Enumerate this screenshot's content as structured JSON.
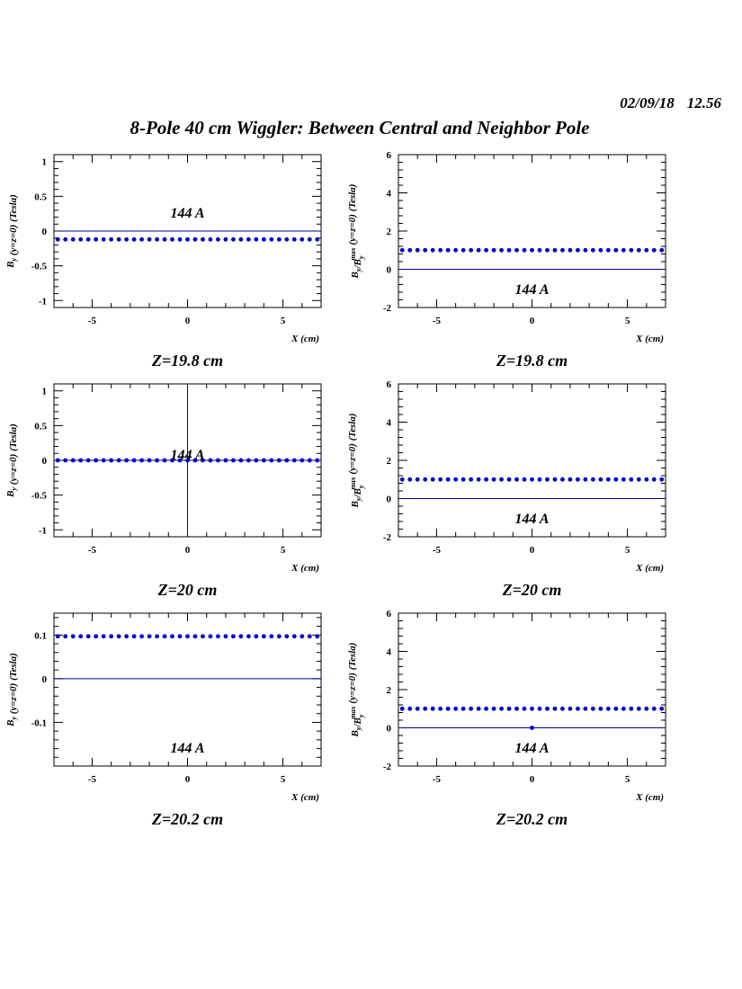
{
  "header": {
    "date": "02/09/18",
    "time": "12.56",
    "title": "8-Pole 40 cm Wiggler: Between Central and Neighbor Pole"
  },
  "colors": {
    "data": "#0000cc",
    "axis": "#000000",
    "line": "#000099"
  },
  "chart_data": [
    {
      "type": "scatter",
      "caption": "Z=19.8 cm",
      "annotation": "144 A",
      "xlabel": "X (cm)",
      "ylabel": "B_y (y=z=0) (Tesla)",
      "xlim": [
        -7,
        7
      ],
      "ylim": [
        -1.1,
        1.1
      ],
      "yticks": [
        -1,
        -0.5,
        0,
        0.5,
        1
      ],
      "yticklabels": [
        "-1",
        "-0.5",
        "0",
        "0.5",
        "1"
      ],
      "xticks": [
        -5,
        0,
        5
      ],
      "xticklabels": [
        "-5",
        "0",
        "5"
      ],
      "hline": 0,
      "series": [
        {
          "x_start": -6.8,
          "x_step": 0.4,
          "count": 35,
          "values": [
            -0.12
          ]
        }
      ]
    },
    {
      "type": "scatter",
      "caption": "Z=19.8 cm",
      "annotation": "144 A",
      "xlabel": "X (cm)",
      "ylabel": "B_y/B_y^max (y=z=0) (Tesla)",
      "xlim": [
        -7,
        7
      ],
      "ylim": [
        -2,
        6
      ],
      "yticks": [
        -2,
        0,
        2,
        4,
        6
      ],
      "yticklabels": [
        "-2",
        "0",
        "2",
        "4",
        "6"
      ],
      "xticks": [
        -5,
        0,
        5
      ],
      "xticklabels": [
        "-5",
        "0",
        "5"
      ],
      "hline": 0,
      "series": [
        {
          "x_start": -6.8,
          "x_step": 0.4,
          "count": 35,
          "values": [
            1.0
          ]
        }
      ]
    },
    {
      "type": "scatter",
      "caption": "Z=20 cm",
      "annotation": "144 A",
      "xlabel": "X (cm)",
      "ylabel": "B_y (y=z=0) (Tesla)",
      "xlim": [
        -7,
        7
      ],
      "ylim": [
        -1.1,
        1.1
      ],
      "yticks": [
        -1,
        -0.5,
        0,
        0.5,
        1
      ],
      "yticklabels": [
        "-1",
        "-0.5",
        "0",
        "0.5",
        "1"
      ],
      "xticks": [
        -5,
        0,
        5
      ],
      "xticklabels": [
        "-5",
        "0",
        "5"
      ],
      "hline": 0,
      "vline": 0,
      "series": [
        {
          "x_start": -6.8,
          "x_step": 0.4,
          "count": 35,
          "values": [
            0.0
          ]
        }
      ]
    },
    {
      "type": "scatter",
      "caption": "Z=20 cm",
      "annotation": "144 A",
      "xlabel": "X (cm)",
      "ylabel": "B_y/B_y^max (y=z=0) (Tesla)",
      "xlim": [
        -7,
        7
      ],
      "ylim": [
        -2,
        6
      ],
      "yticks": [
        -2,
        0,
        2,
        4,
        6
      ],
      "yticklabels": [
        "-2",
        "0",
        "2",
        "4",
        "6"
      ],
      "xticks": [
        -5,
        0,
        5
      ],
      "xticklabels": [
        "-5",
        "0",
        "5"
      ],
      "hline": 0,
      "series": [
        {
          "x_start": -6.8,
          "x_step": 0.4,
          "count": 35,
          "values": [
            1.0
          ]
        }
      ]
    },
    {
      "type": "scatter",
      "caption": "Z=20.2 cm",
      "annotation": "144 A",
      "xlabel": "X (cm)",
      "ylabel": "B_y (y=z=0) (Tesla)",
      "xlim": [
        -7,
        7
      ],
      "ylim": [
        -0.2,
        0.15
      ],
      "yticks": [
        -0.1,
        0,
        0.1
      ],
      "yticklabels": [
        "-0.1",
        "0",
        "0.1"
      ],
      "xticks": [
        -5,
        0,
        5
      ],
      "xticklabels": [
        "-5",
        "0",
        "5"
      ],
      "hline": 0,
      "series": [
        {
          "x_start": -6.8,
          "x_step": 0.4,
          "count": 35,
          "values": [
            0.097
          ]
        }
      ]
    },
    {
      "type": "scatter",
      "caption": "Z=20.2 cm",
      "annotation": "144 A",
      "xlabel": "X (cm)",
      "ylabel": "B_y/B_y^max (y=z=0) (Tesla)",
      "xlim": [
        -7,
        7
      ],
      "ylim": [
        -2,
        6
      ],
      "yticks": [
        -2,
        0,
        2,
        4,
        6
      ],
      "yticklabels": [
        "-2",
        "0",
        "2",
        "4",
        "6"
      ],
      "xticks": [
        -5,
        0,
        5
      ],
      "xticklabels": [
        "-5",
        "0",
        "5"
      ],
      "hline": 0,
      "extra_points": [
        {
          "x": 0,
          "y": 0
        }
      ],
      "series": [
        {
          "x_start": -6.8,
          "x_step": 0.4,
          "count": 35,
          "values": [
            1.0
          ]
        }
      ]
    }
  ]
}
